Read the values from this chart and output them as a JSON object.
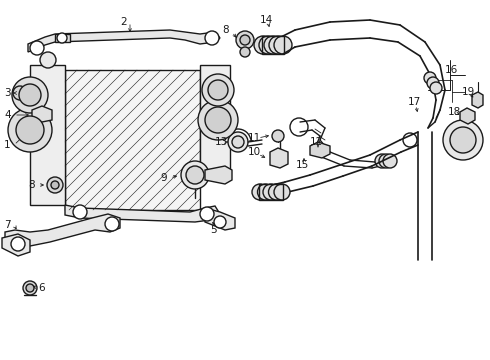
{
  "bg_color": "#ffffff",
  "line_color": "#1a1a1a",
  "lw": 1.0,
  "figsize": [
    4.9,
    3.6
  ],
  "dpi": 100
}
